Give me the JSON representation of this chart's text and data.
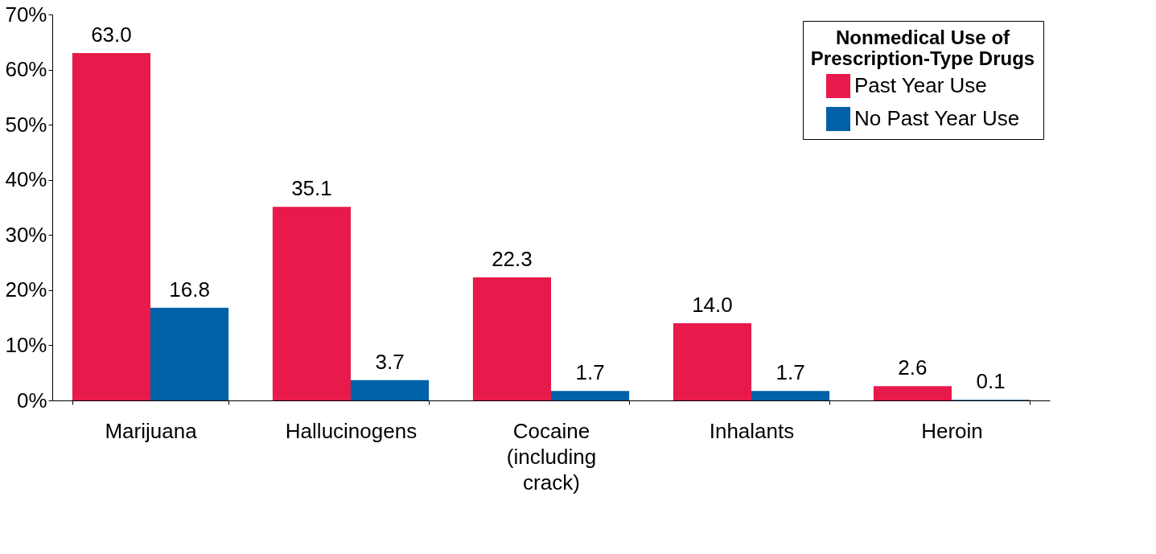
{
  "chart_data": {
    "type": "bar",
    "categories": [
      "Marijuana",
      "Hallucinogens",
      "Cocaine (including crack)",
      "Inhalants",
      "Heroin"
    ],
    "legend_title": "Nonmedical Use of Prescription-Type Drugs",
    "series": [
      {
        "name": "Past Year Use",
        "color": "#e8194b",
        "values": [
          63.0,
          35.1,
          22.3,
          14.0,
          2.6
        ],
        "value_labels": [
          "63.0",
          "35.1",
          "22.3",
          "14.0",
          "2.6"
        ]
      },
      {
        "name": "No Past Year Use",
        "color": "#0060a8",
        "values": [
          16.8,
          3.7,
          1.7,
          1.7,
          0.1
        ],
        "value_labels": [
          "16.8",
          "3.7",
          "1.7",
          "1.7",
          "0.1"
        ]
      }
    ],
    "ylim": [
      0,
      70
    ],
    "yticks": [
      {
        "value": 0,
        "label": "0%"
      },
      {
        "value": 10,
        "label": "10%"
      },
      {
        "value": 20,
        "label": "20%"
      },
      {
        "value": 30,
        "label": "30%"
      },
      {
        "value": 40,
        "label": "40%"
      },
      {
        "value": 50,
        "label": "50%"
      },
      {
        "value": 60,
        "label": "60%"
      },
      {
        "value": 70,
        "label": "70%"
      }
    ],
    "grid": false,
    "legend": "top right"
  }
}
